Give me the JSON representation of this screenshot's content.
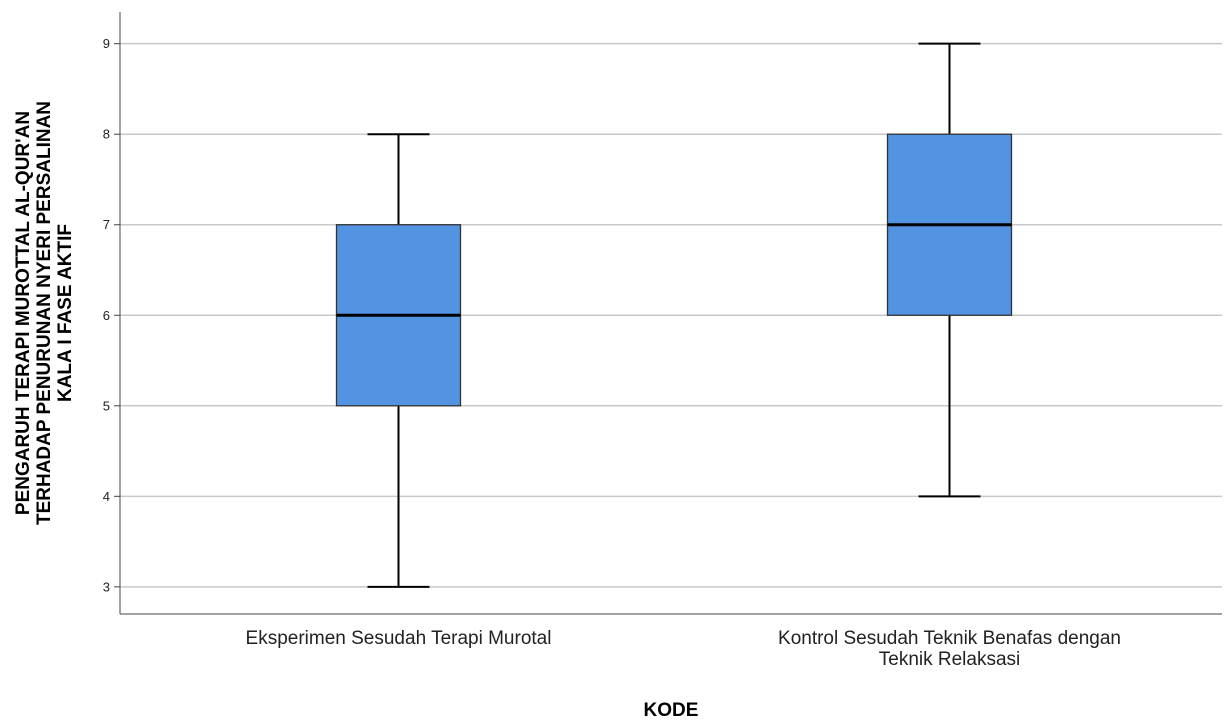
{
  "chart_data": {
    "type": "boxplot",
    "xlabel": "KODE",
    "ylabel_lines": [
      "PENGARUH TERAPI MUROTTAL AL-QUR'AN",
      "TERHADAP PENURUNAN NYERI PERSALINAN",
      "KALA I FASE AKTIF"
    ],
    "ylim": [
      2.7,
      9.35
    ],
    "yticks": [
      3,
      4,
      5,
      6,
      7,
      8,
      9
    ],
    "grid": true,
    "box_color": "#5294e2",
    "categories": [
      {
        "label_lines": [
          "Eksperimen Sesudah Terapi Murotal"
        ],
        "min": 3,
        "q1": 5,
        "median": 6,
        "q3": 7,
        "max": 8
      },
      {
        "label_lines": [
          "Kontrol Sesudah Teknik Benafas dengan",
          "Teknik Relaksasi"
        ],
        "min": 4,
        "q1": 6,
        "median": 7,
        "q3": 8,
        "max": 9
      }
    ]
  }
}
